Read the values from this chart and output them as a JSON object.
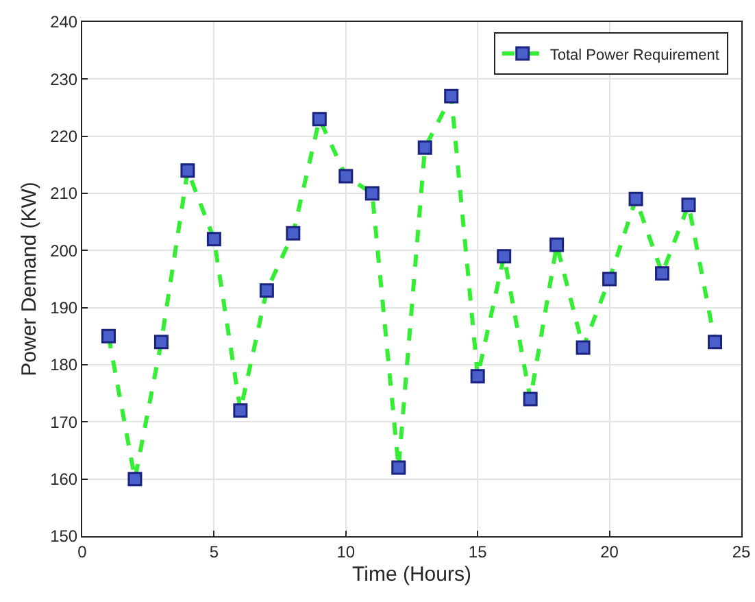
{
  "chart_data": {
    "type": "line",
    "xlabel": "Time (Hours)",
    "ylabel": "Power Demand (KW)",
    "x": [
      1,
      2,
      3,
      4,
      5,
      6,
      7,
      8,
      9,
      10,
      11,
      12,
      13,
      14,
      15,
      16,
      17,
      18,
      19,
      20,
      21,
      22,
      23,
      24
    ],
    "series": [
      {
        "name": "Total Power Requirement",
        "color": "#33ee33",
        "values": [
          185,
          160,
          184,
          214,
          202,
          172,
          193,
          203,
          223,
          213,
          210,
          162,
          218,
          227,
          178,
          199,
          174,
          201,
          183,
          195,
          209,
          196,
          208,
          184
        ]
      }
    ],
    "xlim": [
      0,
      25
    ],
    "xticks": [
      0,
      5,
      10,
      15,
      20,
      25
    ],
    "ylim": [
      150,
      240
    ],
    "yticks": [
      150,
      160,
      170,
      180,
      190,
      200,
      210,
      220,
      230,
      240
    ],
    "grid": true,
    "legend": "top right",
    "marker": "square",
    "line_style": "dashed"
  }
}
